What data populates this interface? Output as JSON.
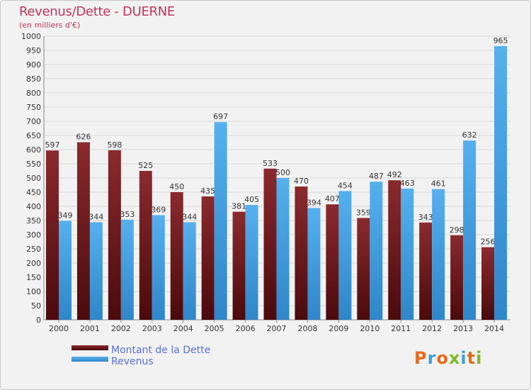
{
  "header": {
    "title": "Revenus/Dette - DUERNE",
    "subtitle": "(en milliers d'€)"
  },
  "logo": {
    "text": "Proxiti",
    "colors": [
      "#e86a1c",
      "#3aa0d8",
      "#e86a1c",
      "#7dba2a",
      "#3aa0d8",
      "#e86a1c",
      "#7dba2a"
    ]
  },
  "chart_data": {
    "type": "bar",
    "categories": [
      "2000",
      "2001",
      "2002",
      "2003",
      "2004",
      "2005",
      "2006",
      "2007",
      "2008",
      "2009",
      "2010",
      "2011",
      "2012",
      "2013",
      "2014"
    ],
    "series": [
      {
        "name": "Montant de la Dette",
        "color": "#7a1e22",
        "values": [
          597,
          626,
          598,
          525,
          450,
          435,
          381,
          533,
          470,
          407,
          359,
          492,
          343,
          298,
          256
        ]
      },
      {
        "name": "Revenus",
        "color": "#4aa6e6",
        "values": [
          349,
          344,
          353,
          369,
          344,
          697,
          405,
          500,
          394,
          454,
          487,
          463,
          461,
          632,
          965
        ]
      }
    ],
    "ylim": [
      0,
      1000
    ],
    "ytick_step": 50,
    "grid": true,
    "legend_position": "bottom-left"
  }
}
